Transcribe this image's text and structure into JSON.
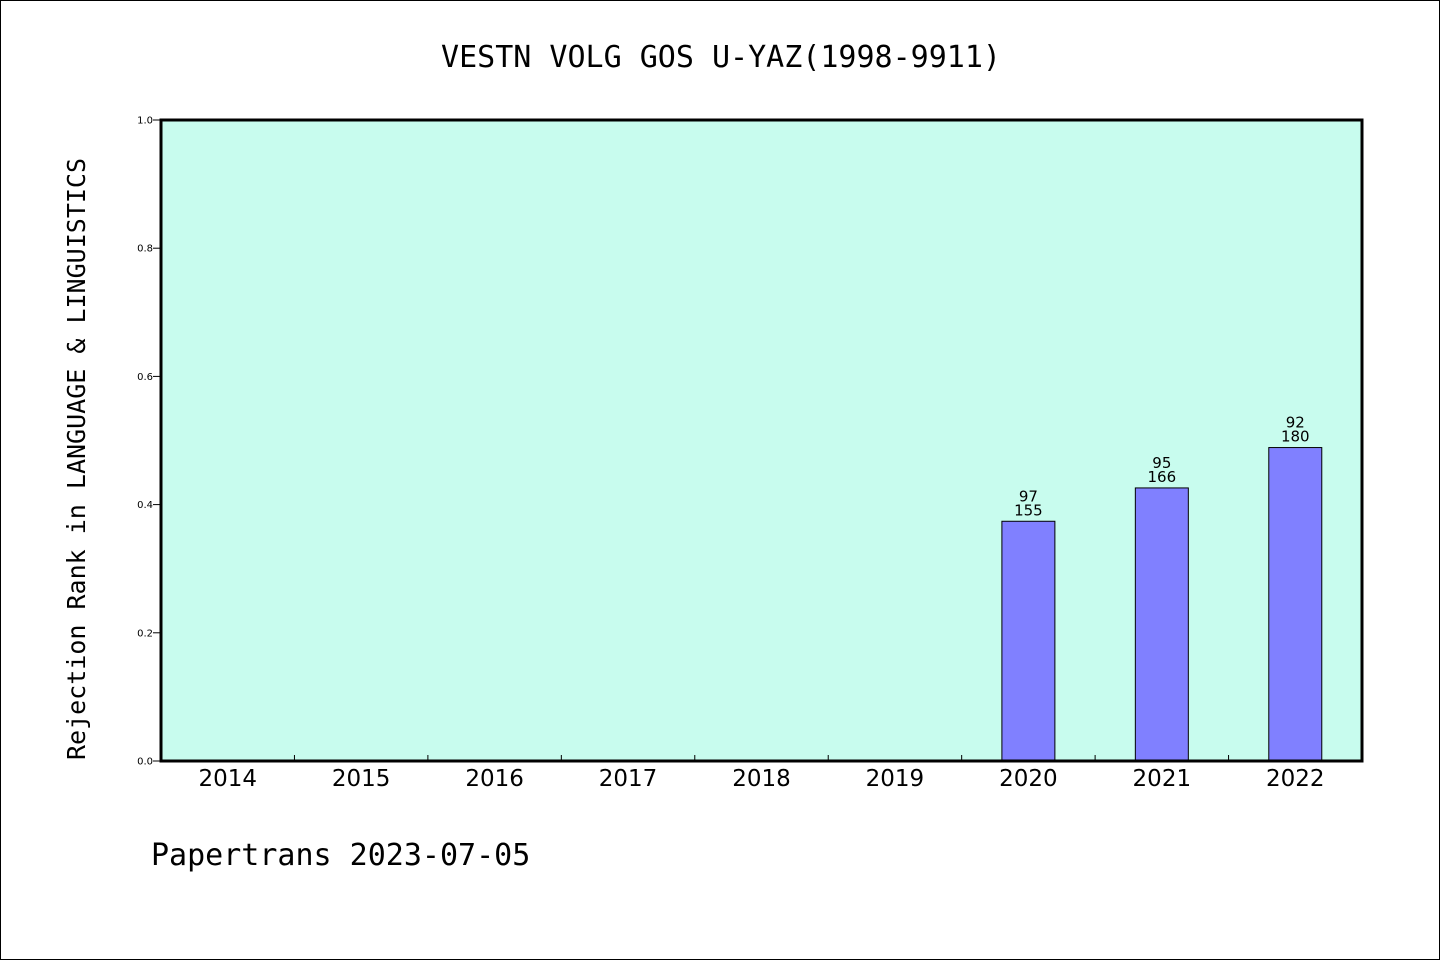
{
  "chart_data": {
    "type": "bar",
    "title": "VESTN VOLG GOS U-YAZ(1998-9911)",
    "xlabel": "",
    "ylabel": "Rejection Rank in LANGUAGE & LINGUISTICS",
    "categories": [
      "2014",
      "2015",
      "2016",
      "2017",
      "2018",
      "2019",
      "2020",
      "2021",
      "2022"
    ],
    "values": [
      null,
      null,
      null,
      null,
      null,
      null,
      0.374,
      0.426,
      0.489
    ],
    "bar_labels": [
      null,
      null,
      null,
      null,
      null,
      null,
      [
        "97",
        "155"
      ],
      [
        "95",
        "166"
      ],
      [
        "92",
        "180"
      ]
    ],
    "ylim": [
      0,
      1.0
    ],
    "yticks": [
      "0.0",
      "0.2",
      "0.4",
      "0.6",
      "0.8",
      "1.0"
    ],
    "grid": false,
    "colors": {
      "plot_background": "#c8fcee",
      "bar_fill": "#8080ff",
      "bar_stroke": "#000000"
    }
  },
  "footer": {
    "text": "Papertrans 2023-07-05"
  }
}
